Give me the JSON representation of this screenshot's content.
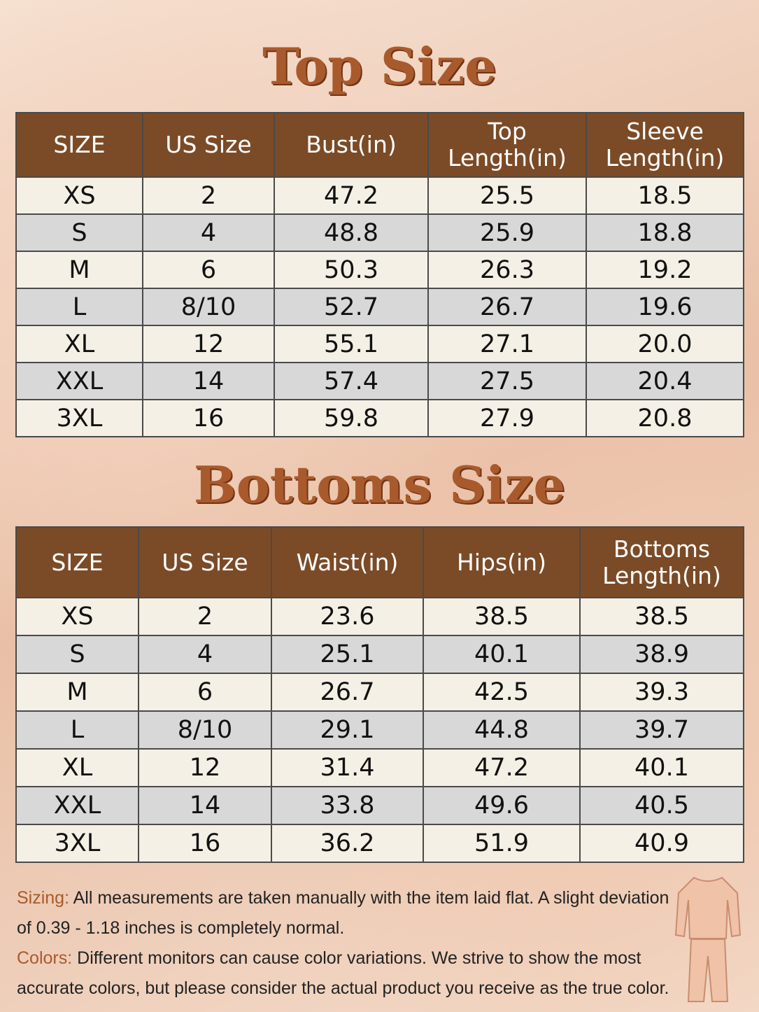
{
  "top": {
    "title": "Top Size",
    "headers": [
      "SIZE",
      "US Size",
      "Bust(in)",
      "Top Length(in)",
      "Sleeve Length(in)"
    ],
    "rows": [
      [
        "XS",
        "2",
        "47.2",
        "25.5",
        "18.5"
      ],
      [
        "S",
        "4",
        "48.8",
        "25.9",
        "18.8"
      ],
      [
        "M",
        "6",
        "50.3",
        "26.3",
        "19.2"
      ],
      [
        "L",
        "8/10",
        "52.7",
        "26.7",
        "19.6"
      ],
      [
        "XL",
        "12",
        "55.1",
        "27.1",
        "20.0"
      ],
      [
        "XXL",
        "14",
        "57.4",
        "27.5",
        "20.4"
      ],
      [
        "3XL",
        "16",
        "59.8",
        "27.9",
        "20.8"
      ]
    ]
  },
  "bottoms": {
    "title": "Bottoms Size",
    "headers": [
      "SIZE",
      "US Size",
      "Waist(in)",
      "Hips(in)",
      "Bottoms Length(in)"
    ],
    "rows": [
      [
        "XS",
        "2",
        "23.6",
        "38.5",
        "38.5"
      ],
      [
        "S",
        "4",
        "25.1",
        "40.1",
        "38.9"
      ],
      [
        "M",
        "6",
        "26.7",
        "42.5",
        "39.3"
      ],
      [
        "L",
        "8/10",
        "29.1",
        "44.8",
        "39.7"
      ],
      [
        "XL",
        "12",
        "31.4",
        "47.2",
        "40.1"
      ],
      [
        "XXL",
        "14",
        "33.8",
        "49.6",
        "40.5"
      ],
      [
        "3XL",
        "16",
        "36.2",
        "51.9",
        "40.9"
      ]
    ]
  },
  "notes": [
    {
      "label": "Sizing:",
      "text": "All measurements are taken manually with the item laid flat. A slight deviation of 0.39 - 1.18 inches is completely normal."
    },
    {
      "label": "Colors:",
      "text": "Different monitors can cause color variations. We strive to show the most accurate colors, but please consider the actual product you receive as the true color."
    }
  ]
}
